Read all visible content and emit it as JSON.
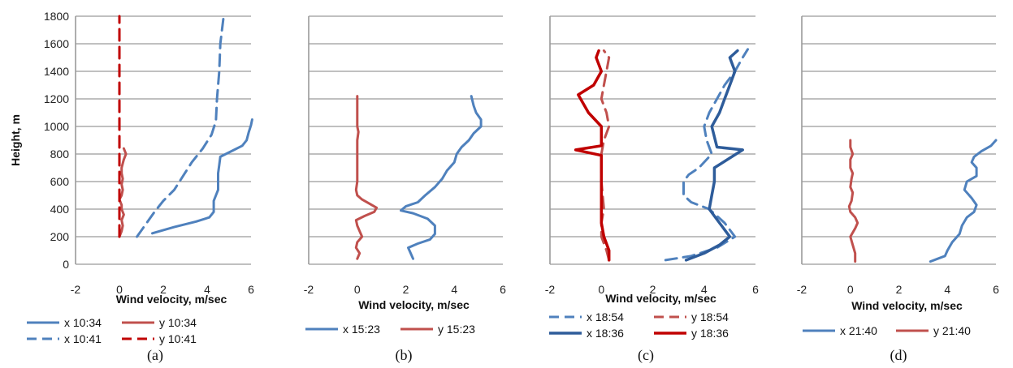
{
  "chart_data": [
    {
      "type": "line",
      "panel": "(a)",
      "xlabel": "Wind velocity, m/sec",
      "ylabel": "Height, m",
      "xlim": [
        -2,
        6
      ],
      "ylim": [
        0,
        1800
      ],
      "xticks": [
        -2,
        0,
        2,
        4,
        6
      ],
      "yticks": [
        0,
        200,
        400,
        600,
        800,
        1000,
        1200,
        1400,
        1600,
        1800
      ],
      "show_yticks": true,
      "grid": "horizontal",
      "legend": "bottom",
      "series": [
        {
          "name": "x 10:34",
          "color": "#4F81BD",
          "dash": "solid",
          "width": 3,
          "points": [
            [
              1.5,
              225
            ],
            [
              2.5,
              270
            ],
            [
              3.5,
              310
            ],
            [
              4.1,
              340
            ],
            [
              4.3,
              380
            ],
            [
              4.3,
              460
            ],
            [
              4.4,
              500
            ],
            [
              4.5,
              540
            ],
            [
              4.5,
              600
            ],
            [
              4.5,
              660
            ],
            [
              4.55,
              720
            ],
            [
              4.6,
              780
            ],
            [
              5.1,
              820
            ],
            [
              5.6,
              860
            ],
            [
              5.8,
              900
            ],
            [
              5.9,
              960
            ],
            [
              6.0,
              1010
            ],
            [
              6.05,
              1050
            ]
          ]
        },
        {
          "name": "y 10:34",
          "color": "#C0504D",
          "dash": "solid",
          "width": 3,
          "points": [
            [
              0.0,
              200
            ],
            [
              0.1,
              240
            ],
            [
              0.15,
              280
            ],
            [
              0.1,
              320
            ],
            [
              0.2,
              360
            ],
            [
              0.1,
              400
            ],
            [
              0.1,
              430
            ],
            [
              0.0,
              470
            ],
            [
              0.1,
              500
            ],
            [
              0.15,
              540
            ],
            [
              0.1,
              580
            ],
            [
              0.15,
              620
            ],
            [
              0.1,
              660
            ],
            [
              0.1,
              700
            ],
            [
              0.2,
              760
            ],
            [
              0.3,
              800
            ],
            [
              0.2,
              840
            ]
          ]
        },
        {
          "name": "x 10:41",
          "color": "#4F81BD",
          "dash": "dashed",
          "width": 3,
          "points": [
            [
              0.8,
              200
            ],
            [
              1.2,
              290
            ],
            [
              1.6,
              380
            ],
            [
              2.0,
              460
            ],
            [
              2.5,
              540
            ],
            [
              2.9,
              640
            ],
            [
              3.3,
              740
            ],
            [
              3.8,
              840
            ],
            [
              4.2,
              940
            ],
            [
              4.4,
              1040
            ],
            [
              4.45,
              1200
            ],
            [
              4.55,
              1400
            ],
            [
              4.6,
              1600
            ],
            [
              4.75,
              1800
            ]
          ]
        },
        {
          "name": "y 10:41",
          "color": "#C00000",
          "dash": "dashed",
          "width": 3,
          "points": [
            [
              0.0,
              200
            ],
            [
              0.0,
              500
            ],
            [
              0.0,
              800
            ],
            [
              0.0,
              1000
            ],
            [
              0.0,
              1100
            ],
            [
              0.0,
              1200
            ],
            [
              0.0,
              1400
            ],
            [
              0.0,
              1600
            ],
            [
              0.0,
              1800
            ]
          ]
        }
      ],
      "legend_entries": [
        "x 10:34",
        "y 10:34",
        "x 10:41",
        "y 10:41"
      ],
      "caption": "(a)"
    },
    {
      "type": "line",
      "panel": "(b)",
      "xlabel": "Wind velocity, m/sec",
      "xlim": [
        -2,
        6
      ],
      "ylim": [
        0,
        1800
      ],
      "xticks": [
        -2,
        0,
        2,
        4,
        6
      ],
      "show_yticks": false,
      "grid": "horizontal",
      "legend": "bottom",
      "series": [
        {
          "name": "x 15:23",
          "color": "#4F81BD",
          "dash": "solid",
          "width": 3,
          "points": [
            [
              2.3,
              40
            ],
            [
              2.2,
              80
            ],
            [
              2.1,
              120
            ],
            [
              2.5,
              150
            ],
            [
              3.0,
              180
            ],
            [
              3.2,
              220
            ],
            [
              3.2,
              280
            ],
            [
              2.9,
              330
            ],
            [
              2.3,
              370
            ],
            [
              1.8,
              390
            ],
            [
              2.0,
              420
            ],
            [
              2.5,
              450
            ],
            [
              2.8,
              500
            ],
            [
              3.2,
              560
            ],
            [
              3.5,
              620
            ],
            [
              3.7,
              680
            ],
            [
              4.0,
              740
            ],
            [
              4.1,
              800
            ],
            [
              4.3,
              850
            ],
            [
              4.6,
              900
            ],
            [
              4.8,
              950
            ],
            [
              5.1,
              1000
            ],
            [
              5.1,
              1050
            ],
            [
              4.9,
              1100
            ],
            [
              4.8,
              1150
            ],
            [
              4.7,
              1220
            ]
          ]
        },
        {
          "name": "y 15:23",
          "color": "#C0504D",
          "dash": "solid",
          "width": 3,
          "points": [
            [
              0.0,
              40
            ],
            [
              0.1,
              80
            ],
            [
              -0.05,
              120
            ],
            [
              0.0,
              160
            ],
            [
              0.2,
              200
            ],
            [
              0.1,
              240
            ],
            [
              0.0,
              280
            ],
            [
              -0.05,
              320
            ],
            [
              0.3,
              350
            ],
            [
              0.7,
              380
            ],
            [
              0.8,
              410
            ],
            [
              0.5,
              440
            ],
            [
              0.2,
              470
            ],
            [
              0.0,
              500
            ],
            [
              -0.05,
              540
            ],
            [
              0.0,
              600
            ],
            [
              0.0,
              700
            ],
            [
              0.0,
              800
            ],
            [
              0.0,
              900
            ],
            [
              0.05,
              960
            ],
            [
              0.0,
              1000
            ],
            [
              0.0,
              1100
            ],
            [
              0.0,
              1220
            ]
          ]
        }
      ],
      "legend_entries": [
        "x 15:23",
        "y 15:23"
      ],
      "caption": "(b)"
    },
    {
      "type": "line",
      "panel": "(c)",
      "xlabel": "Wind velocity, m/sec",
      "xlim": [
        -2,
        6
      ],
      "ylim": [
        0,
        1800
      ],
      "xticks": [
        -2,
        0,
        2,
        4,
        6
      ],
      "show_yticks": false,
      "grid": "horizontal",
      "legend": "bottom",
      "series": [
        {
          "name": "x 18:54",
          "color": "#4F81BD",
          "dash": "dashed",
          "width": 3,
          "points": [
            [
              2.5,
              30
            ],
            [
              3.5,
              60
            ],
            [
              4.5,
              120
            ],
            [
              5.2,
              200
            ],
            [
              4.8,
              300
            ],
            [
              4.2,
              400
            ],
            [
              3.5,
              450
            ],
            [
              3.2,
              500
            ],
            [
              3.2,
              600
            ],
            [
              3.4,
              650
            ],
            [
              3.8,
              700
            ],
            [
              4.3,
              800
            ],
            [
              4.1,
              900
            ],
            [
              4.0,
              1000
            ],
            [
              4.2,
              1100
            ],
            [
              4.5,
              1200
            ],
            [
              4.8,
              1300
            ],
            [
              5.2,
              1400
            ],
            [
              5.5,
              1500
            ],
            [
              5.7,
              1560
            ]
          ]
        },
        {
          "name": "y 18:54",
          "color": "#C0504D",
          "dash": "dashed",
          "width": 3,
          "points": [
            [
              0.3,
              30
            ],
            [
              0.2,
              100
            ],
            [
              0.0,
              200
            ],
            [
              0.0,
              300
            ],
            [
              0.1,
              400
            ],
            [
              0.0,
              600
            ],
            [
              0.0,
              800
            ],
            [
              0.1,
              900
            ],
            [
              0.3,
              1000
            ],
            [
              0.2,
              1100
            ],
            [
              0.0,
              1200
            ],
            [
              0.1,
              1300
            ],
            [
              0.2,
              1400
            ],
            [
              0.3,
              1500
            ],
            [
              0.1,
              1550
            ]
          ]
        },
        {
          "name": "x 18:36",
          "color": "#2E5C9A",
          "dash": "solid",
          "width": 3.5,
          "points": [
            [
              3.3,
              30
            ],
            [
              4.0,
              80
            ],
            [
              4.6,
              140
            ],
            [
              5.0,
              200
            ],
            [
              4.6,
              300
            ],
            [
              4.2,
              400
            ],
            [
              4.3,
              500
            ],
            [
              4.4,
              600
            ],
            [
              4.4,
              700
            ],
            [
              5.5,
              830
            ],
            [
              4.5,
              850
            ],
            [
              4.3,
              1000
            ],
            [
              4.6,
              1100
            ],
            [
              4.8,
              1200
            ],
            [
              5.0,
              1300
            ],
            [
              5.2,
              1400
            ],
            [
              5.0,
              1500
            ],
            [
              5.3,
              1550
            ]
          ]
        },
        {
          "name": "y 18:36",
          "color": "#C00000",
          "dash": "solid",
          "width": 3.5,
          "points": [
            [
              0.3,
              30
            ],
            [
              0.3,
              100
            ],
            [
              0.1,
              200
            ],
            [
              0.0,
              300
            ],
            [
              0.0,
              400
            ],
            [
              0.0,
              600
            ],
            [
              0.0,
              790
            ],
            [
              -1.0,
              830
            ],
            [
              0.0,
              860
            ],
            [
              0.0,
              1000
            ],
            [
              -0.5,
              1100
            ],
            [
              -0.9,
              1230
            ],
            [
              -0.3,
              1300
            ],
            [
              0.0,
              1400
            ],
            [
              -0.2,
              1500
            ],
            [
              -0.1,
              1550
            ]
          ]
        }
      ],
      "legend_entries": [
        "x 18:54",
        "y 18:54",
        "x 18:36",
        "y 18:36"
      ],
      "caption": "(c)"
    },
    {
      "type": "line",
      "panel": "(d)",
      "xlabel": "Wind velocity, m/sec",
      "xlim": [
        -2,
        6
      ],
      "ylim": [
        0,
        1800
      ],
      "xticks": [
        -2,
        0,
        2,
        4,
        6
      ],
      "show_yticks": false,
      "grid": "horizontal",
      "legend": "bottom",
      "series": [
        {
          "name": "x 21:40",
          "color": "#4F81BD",
          "dash": "solid",
          "width": 3,
          "points": [
            [
              3.3,
              20
            ],
            [
              3.6,
              40
            ],
            [
              3.9,
              60
            ],
            [
              4.0,
              100
            ],
            [
              4.2,
              160
            ],
            [
              4.5,
              220
            ],
            [
              4.6,
              280
            ],
            [
              4.8,
              340
            ],
            [
              5.1,
              380
            ],
            [
              5.2,
              430
            ],
            [
              5.0,
              480
            ],
            [
              4.7,
              540
            ],
            [
              4.8,
              600
            ],
            [
              5.2,
              640
            ],
            [
              5.2,
              700
            ],
            [
              5.0,
              740
            ],
            [
              5.1,
              780
            ],
            [
              5.4,
              820
            ],
            [
              5.8,
              860
            ],
            [
              6.0,
              900
            ]
          ]
        },
        {
          "name": "y 21:40",
          "color": "#C0504D",
          "dash": "solid",
          "width": 3,
          "points": [
            [
              0.2,
              20
            ],
            [
              0.2,
              80
            ],
            [
              0.1,
              140
            ],
            [
              0.0,
              200
            ],
            [
              0.2,
              260
            ],
            [
              0.3,
              300
            ],
            [
              0.2,
              340
            ],
            [
              0.0,
              380
            ],
            [
              -0.05,
              420
            ],
            [
              0.05,
              460
            ],
            [
              0.1,
              520
            ],
            [
              0.0,
              560
            ],
            [
              0.05,
              620
            ],
            [
              0.1,
              660
            ],
            [
              0.0,
              700
            ],
            [
              0.0,
              760
            ],
            [
              0.1,
              800
            ],
            [
              0.0,
              850
            ],
            [
              0.0,
              900
            ]
          ]
        }
      ],
      "legend_entries": [
        "x 21:40",
        "y 21:40"
      ],
      "caption": "(d)"
    }
  ]
}
